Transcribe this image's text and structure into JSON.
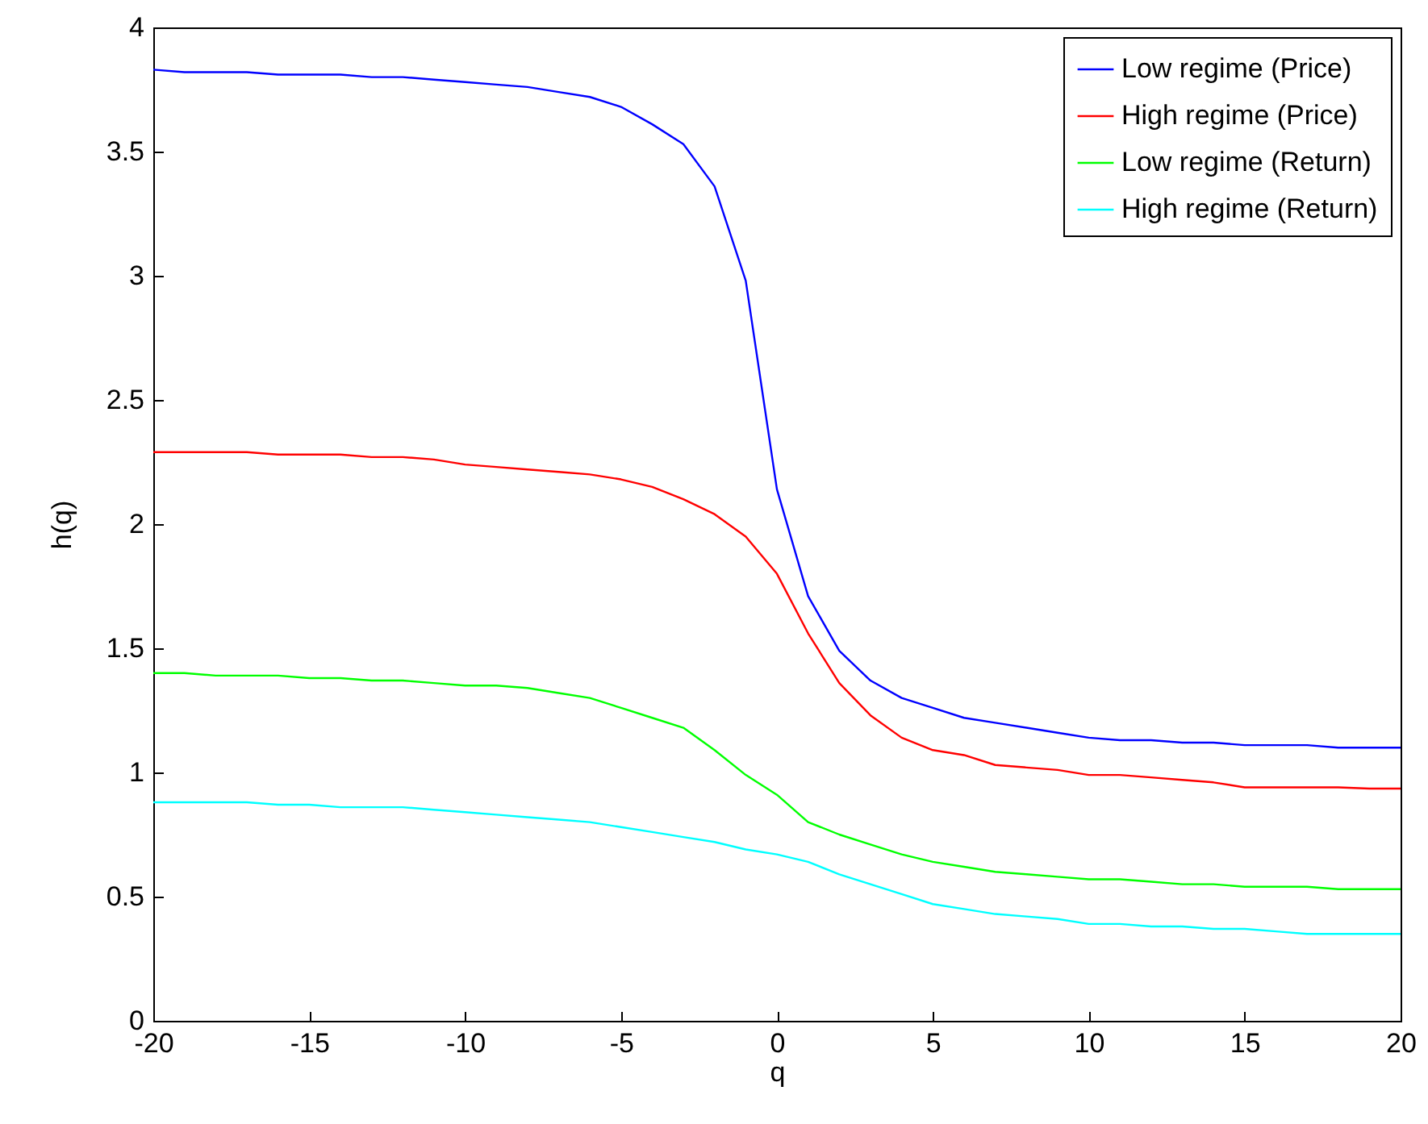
{
  "chart_data": {
    "type": "line",
    "xlabel": "q",
    "ylabel": "h(q)",
    "x": [
      -20,
      -19,
      -18,
      -17,
      -16,
      -15,
      -14,
      -13,
      -12,
      -11,
      -10,
      -9,
      -8,
      -7,
      -6,
      -5,
      -4,
      -3,
      -2,
      -1,
      0,
      1,
      2,
      3,
      4,
      5,
      6,
      7,
      8,
      9,
      10,
      11,
      12,
      13,
      14,
      15,
      16,
      17,
      18,
      19,
      20
    ],
    "series": [
      {
        "name": "Low regime (Price)",
        "color": "#0000ff",
        "values": [
          3.83,
          3.82,
          3.82,
          3.82,
          3.81,
          3.81,
          3.81,
          3.8,
          3.8,
          3.79,
          3.78,
          3.77,
          3.76,
          3.74,
          3.72,
          3.68,
          3.61,
          3.53,
          3.36,
          2.98,
          2.14,
          1.71,
          1.49,
          1.37,
          1.3,
          1.26,
          1.22,
          1.2,
          1.18,
          1.16,
          1.14,
          1.13,
          1.13,
          1.12,
          1.12,
          1.11,
          1.11,
          1.11,
          1.1,
          1.1,
          1.1
        ]
      },
      {
        "name": "High regime (Price)",
        "color": "#ff0000",
        "values": [
          2.29,
          2.29,
          2.29,
          2.29,
          2.28,
          2.28,
          2.28,
          2.27,
          2.27,
          2.26,
          2.24,
          2.23,
          2.22,
          2.21,
          2.2,
          2.18,
          2.15,
          2.1,
          2.04,
          1.95,
          1.8,
          1.56,
          1.36,
          1.23,
          1.14,
          1.09,
          1.07,
          1.03,
          1.02,
          1.01,
          0.99,
          0.99,
          0.98,
          0.97,
          0.96,
          0.94,
          0.94,
          0.94,
          0.94,
          0.935,
          0.935
        ]
      },
      {
        "name": "Low regime (Return)",
        "color": "#00ff00",
        "values": [
          1.4,
          1.4,
          1.39,
          1.39,
          1.39,
          1.38,
          1.38,
          1.37,
          1.37,
          1.36,
          1.35,
          1.35,
          1.34,
          1.32,
          1.3,
          1.26,
          1.22,
          1.18,
          1.09,
          0.99,
          0.91,
          0.8,
          0.75,
          0.71,
          0.67,
          0.64,
          0.62,
          0.6,
          0.59,
          0.58,
          0.57,
          0.57,
          0.56,
          0.55,
          0.55,
          0.54,
          0.54,
          0.54,
          0.53,
          0.53,
          0.53
        ]
      },
      {
        "name": "High regime (Return)",
        "color": "#00ffff",
        "values": [
          0.88,
          0.88,
          0.88,
          0.88,
          0.87,
          0.87,
          0.86,
          0.86,
          0.86,
          0.85,
          0.84,
          0.83,
          0.82,
          0.81,
          0.8,
          0.78,
          0.76,
          0.74,
          0.72,
          0.69,
          0.67,
          0.64,
          0.59,
          0.55,
          0.51,
          0.47,
          0.45,
          0.43,
          0.42,
          0.41,
          0.39,
          0.39,
          0.38,
          0.38,
          0.37,
          0.37,
          0.36,
          0.35,
          0.35,
          0.35,
          0.35
        ]
      }
    ],
    "xlim": [
      -20,
      20
    ],
    "xticks": [
      -20,
      -15,
      -10,
      -5,
      0,
      5,
      10,
      15,
      20
    ],
    "ylim": [
      0,
      4
    ],
    "yticks": [
      0,
      0.5,
      1,
      1.5,
      2,
      2.5,
      3,
      3.5,
      4
    ],
    "grid": false,
    "legend": "top right",
    "line_style": "solid",
    "marker": "none"
  }
}
